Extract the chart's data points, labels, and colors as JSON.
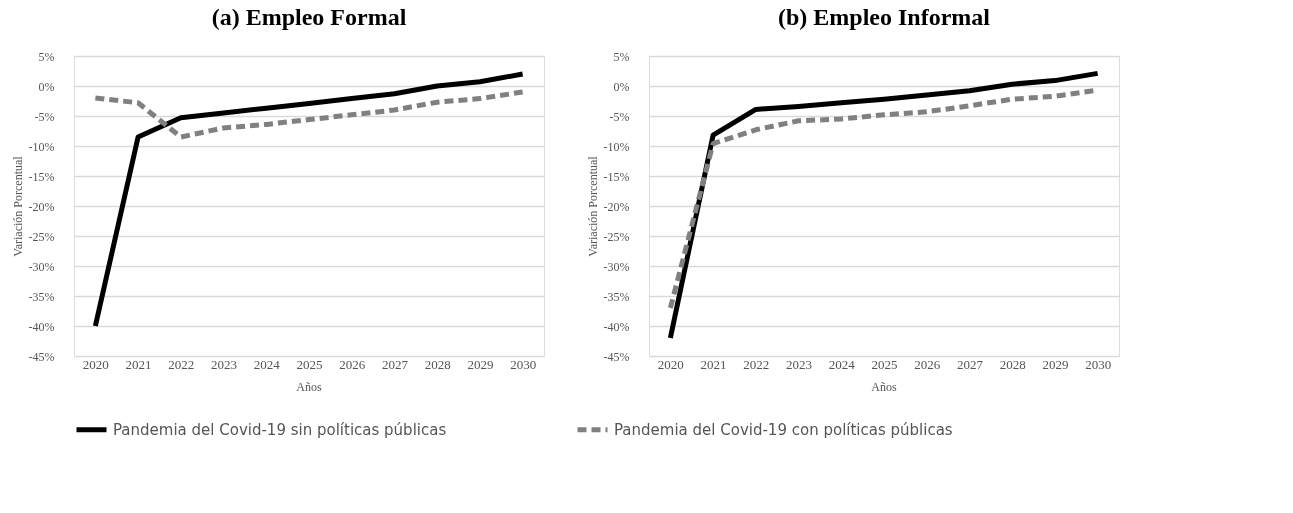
{
  "chart_data": [
    {
      "type": "line",
      "title": "(a) Empleo Formal",
      "xlabel": "Años",
      "ylabel": "Variación Porcentual",
      "categories": [
        "2020",
        "2021",
        "2022",
        "2023",
        "2024",
        "2025",
        "2026",
        "2027",
        "2028",
        "2029",
        "2030"
      ],
      "series": [
        {
          "name": "Pandemia del Covid-19 sin políticas públicas",
          "color": "#000000",
          "line_style": "solid",
          "values": [
            -40,
            -8.5,
            -5.3,
            -4.5,
            -3.7,
            -2.9,
            -2.1,
            -1.3,
            0,
            0.7,
            2.0
          ]
        },
        {
          "name": "Pandemia del Covid-19 con políticas públicas",
          "color": "#808080",
          "line_style": "dashed",
          "values": [
            -2,
            -2.8,
            -8.5,
            -7.0,
            -6.4,
            -5.6,
            -4.8,
            -4.0,
            -2.7,
            -2.1,
            -1.0
          ]
        }
      ],
      "ylim": [
        -45,
        5
      ],
      "yticks": [
        {
          "value": -45,
          "label": "-45%"
        },
        {
          "value": -40,
          "label": "-40%"
        },
        {
          "value": -35,
          "label": "-35%"
        },
        {
          "value": -30,
          "label": "-30%"
        },
        {
          "value": -25,
          "label": "-25%"
        },
        {
          "value": -20,
          "label": "-20%"
        },
        {
          "value": -15,
          "label": "-15%"
        },
        {
          "value": -10,
          "label": "-10%"
        },
        {
          "value": -5,
          "label": "-5%"
        },
        {
          "value": 0,
          "label": "0%"
        },
        {
          "value": 5,
          "label": "5%"
        }
      ],
      "grid": "y",
      "legend": "bottom",
      "marker": "none"
    },
    {
      "type": "line",
      "title": "(b) Empleo Informal",
      "xlabel": "Años",
      "ylabel": "Variación Porcentual",
      "categories": [
        "2020",
        "2021",
        "2022",
        "2023",
        "2024",
        "2025",
        "2026",
        "2027",
        "2028",
        "2029",
        "2030"
      ],
      "series": [
        {
          "name": "Pandemia del Covid-19 sin políticas públicas",
          "color": "#000000",
          "line_style": "solid",
          "values": [
            -42,
            -8.2,
            -3.9,
            -3.4,
            -2.8,
            -2.2,
            -1.5,
            -0.8,
            0.3,
            0.9,
            2.1
          ]
        },
        {
          "name": "Pandemia del Covid-19 con políticas públicas",
          "color": "#808080",
          "line_style": "dashed",
          "values": [
            -37,
            -9.6,
            -7.3,
            -5.8,
            -5.5,
            -4.8,
            -4.3,
            -3.3,
            -2.2,
            -1.7,
            -0.7
          ]
        }
      ],
      "ylim": [
        -45,
        5
      ],
      "yticks": [
        {
          "value": -45,
          "label": "-45%"
        },
        {
          "value": -40,
          "label": "-40%"
        },
        {
          "value": -35,
          "label": "-35%"
        },
        {
          "value": -30,
          "label": "-30%"
        },
        {
          "value": -25,
          "label": "-25%"
        },
        {
          "value": -20,
          "label": "-20%"
        },
        {
          "value": -15,
          "label": "-15%"
        },
        {
          "value": -10,
          "label": "-10%"
        },
        {
          "value": -5,
          "label": "-5%"
        },
        {
          "value": 0,
          "label": "0%"
        },
        {
          "value": 5,
          "label": "5%"
        }
      ],
      "grid": "y",
      "legend": "bottom",
      "marker": "none"
    }
  ]
}
